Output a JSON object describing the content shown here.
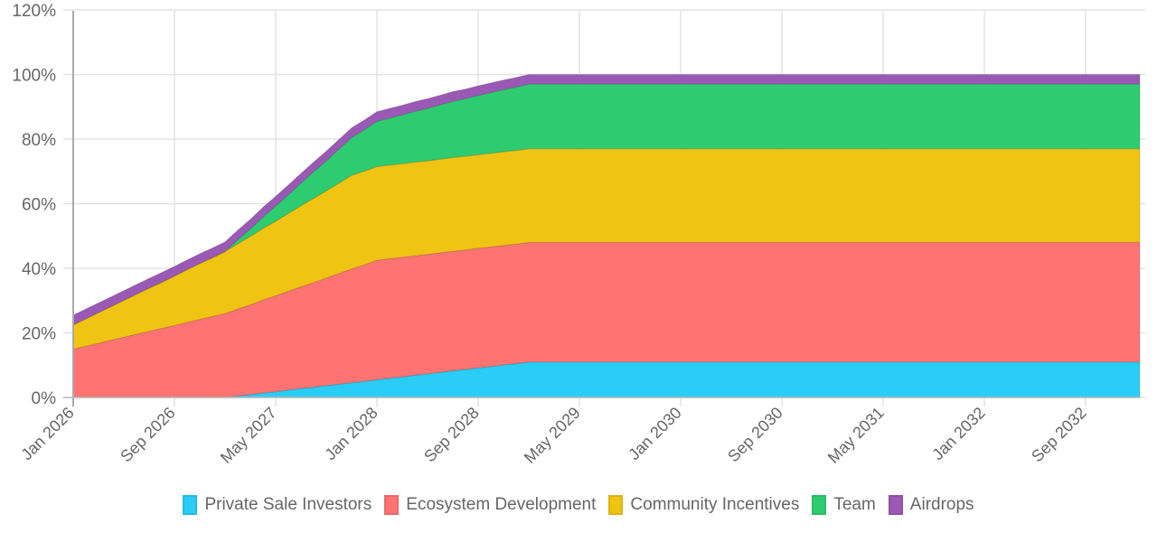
{
  "chart_data": {
    "type": "area",
    "stacked": true,
    "title": "",
    "xlabel": "",
    "ylabel": "",
    "ylim": [
      0,
      120
    ],
    "yticks": [
      "0%",
      "20%",
      "40%",
      "60%",
      "80%",
      "100%",
      "120%"
    ],
    "ytick_values": [
      0,
      20,
      40,
      60,
      80,
      100,
      120
    ],
    "x_start": "Jan 2026",
    "x_unit": "month",
    "x_count": 85,
    "xticks": [
      "Jan 2026",
      "Sep 2026",
      "May 2027",
      "Jan 2028",
      "Sep 2028",
      "May 2029",
      "Jan 2030",
      "Sep 2030",
      "May 2031",
      "Jan 2032",
      "Sep 2032"
    ],
    "xtick_months": [
      0,
      8,
      16,
      24,
      32,
      40,
      48,
      56,
      64,
      72,
      80
    ],
    "grid": true,
    "legend_position": "bottom",
    "series": [
      {
        "name": "Private Sale Investors",
        "color": "#29cdf5",
        "values": [
          0,
          0,
          0,
          0,
          0,
          0,
          0,
          0,
          0,
          0,
          0,
          0,
          0,
          0.5,
          0.9,
          1.4,
          1.8,
          2.3,
          2.8,
          3.2,
          3.7,
          4.1,
          4.6,
          5.0,
          5.5,
          6.0,
          6.4,
          6.9,
          7.3,
          7.8,
          8.3,
          8.7,
          9.2,
          9.6,
          10.1,
          10.5,
          11,
          11,
          11,
          11,
          11,
          11,
          11,
          11,
          11,
          11,
          11,
          11,
          11,
          11,
          11,
          11,
          11,
          11,
          11,
          11,
          11,
          11,
          11,
          11,
          11,
          11,
          11,
          11,
          11,
          11,
          11,
          11,
          11,
          11,
          11,
          11,
          11,
          11,
          11,
          11,
          11,
          11,
          11,
          11,
          11,
          11,
          11,
          11,
          11
        ]
      },
      {
        "name": "Ecosystem Development",
        "color": "#ff7373",
        "values": [
          15.0,
          15.9,
          16.8,
          17.8,
          18.7,
          19.6,
          20.5,
          21.4,
          22.3,
          23.3,
          24.2,
          25.1,
          26.0,
          26.9,
          27.8,
          28.8,
          29.7,
          30.6,
          31.5,
          32.4,
          33.3,
          34.3,
          35.2,
          36.1,
          37,
          37,
          37,
          37,
          37,
          37,
          37,
          37,
          37,
          37,
          37,
          37,
          37,
          37,
          37,
          37,
          37,
          37,
          37,
          37,
          37,
          37,
          37,
          37,
          37,
          37,
          37,
          37,
          37,
          37,
          37,
          37,
          37,
          37,
          37,
          37,
          37,
          37,
          37,
          37,
          37,
          37,
          37,
          37,
          37,
          37,
          37,
          37,
          37,
          37,
          37,
          37,
          37,
          37,
          37,
          37,
          37,
          37,
          37,
          37,
          37
        ]
      },
      {
        "name": "Community Incentives",
        "color": "#f0c413",
        "values": [
          7.5,
          8.5,
          9.5,
          10.4,
          11.4,
          12.4,
          13.4,
          14.3,
          15.3,
          16.3,
          17.3,
          18.2,
          19.2,
          20.2,
          21.2,
          22.2,
          23.1,
          24.1,
          25.1,
          26.1,
          27.0,
          28.0,
          29.0,
          29,
          29,
          29,
          29,
          29,
          29,
          29,
          29,
          29,
          29,
          29,
          29,
          29,
          29,
          29,
          29,
          29,
          29,
          29,
          29,
          29,
          29,
          29,
          29,
          29,
          29,
          29,
          29,
          29,
          29,
          29,
          29,
          29,
          29,
          29,
          29,
          29,
          29,
          29,
          29,
          29,
          29,
          29,
          29,
          29,
          29,
          29,
          29,
          29,
          29,
          29,
          29,
          29,
          29,
          29,
          29,
          29,
          29,
          29,
          29,
          29,
          29
        ]
      },
      {
        "name": "Team",
        "color": "#2ecc71",
        "values": [
          0,
          0,
          0,
          0,
          0,
          0,
          0,
          0,
          0,
          0,
          0,
          0,
          0,
          1.2,
          2.3,
          3.5,
          4.7,
          5.8,
          7.0,
          8.2,
          9.3,
          10.5,
          11.7,
          12.8,
          14.0,
          14.5,
          15.1,
          15.7,
          16.2,
          16.8,
          17.4,
          17.8,
          18.3,
          18.8,
          19.2,
          19.6,
          20,
          20,
          20,
          20,
          20,
          20,
          20,
          20,
          20,
          20,
          20,
          20,
          20,
          20,
          20,
          20,
          20,
          20,
          20,
          20,
          20,
          20,
          20,
          20,
          20,
          20,
          20,
          20,
          20,
          20,
          20,
          20,
          20,
          20,
          20,
          20,
          20,
          20,
          20,
          20,
          20,
          20,
          20,
          20,
          20,
          20,
          20,
          20,
          20
        ]
      },
      {
        "name": "Airdrops",
        "color": "#9b59b6",
        "values": [
          3,
          3,
          3,
          3,
          3,
          3,
          3,
          3,
          3,
          3,
          3,
          3,
          3,
          3,
          3,
          3,
          3,
          3,
          3,
          3,
          3,
          3,
          3,
          3,
          3,
          3,
          3,
          3,
          3,
          3,
          3,
          3,
          3,
          3,
          3,
          3,
          3,
          3,
          3,
          3,
          3,
          3,
          3,
          3,
          3,
          3,
          3,
          3,
          3,
          3,
          3,
          3,
          3,
          3,
          3,
          3,
          3,
          3,
          3,
          3,
          3,
          3,
          3,
          3,
          3,
          3,
          3,
          3,
          3,
          3,
          3,
          3,
          3,
          3,
          3,
          3,
          3,
          3,
          3,
          3,
          3,
          3,
          3,
          3,
          3
        ]
      }
    ]
  }
}
